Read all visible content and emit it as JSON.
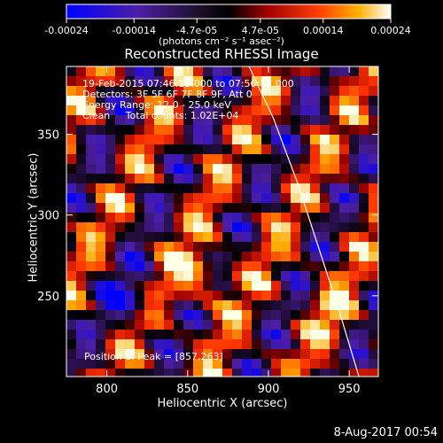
{
  "chart_data": {
    "type": "heatmap",
    "title": "Reconstructed RHESSI Image",
    "colorbar": {
      "units_label": "(photons cm⁻² s⁻¹ asec⁻²)",
      "ticks": [
        "-0.00024",
        "-0.00014",
        "-4.7e-05",
        "4.7e-05",
        "0.00014",
        "0.00024"
      ],
      "min": -0.00024,
      "max": 0.00024
    },
    "xlabel": "Heliocentric X (arcsec)",
    "ylabel": "Heliocentric Y (arcsec)",
    "xlim": [
      775,
      968
    ],
    "ylim": [
      200,
      392
    ],
    "xticks": [
      "800",
      "850",
      "900",
      "950"
    ],
    "yticks": [
      "250",
      "300",
      "350"
    ],
    "annotations": {
      "time": "19-Feb-2015 07:46:12.000 to 07:56:12.000",
      "detectors": "Detectors: 3F 5F 6F 7F 8F 9F, Att 0",
      "energy": "Energy Range: 12.0 - 25.0 keV",
      "method": "Clean     Total counts: 1.02E+04",
      "peak": "Position of Peak = [857,263]"
    },
    "peak": [
      857,
      263
    ],
    "limb_curve": [
      [
        888,
        392
      ],
      [
        903,
        360
      ],
      [
        918,
        320
      ],
      [
        931,
        280
      ],
      [
        944,
        240
      ],
      [
        956,
        200
      ]
    ]
  },
  "footer": {
    "date": "8-Aug-2017 00:54"
  },
  "colors": {
    "background": "#000000",
    "axes": "#ffffff",
    "colormap_stops": [
      "#0000ff",
      "#5a1ea0",
      "#000000",
      "#b40000",
      "#ff3c00",
      "#ffb400",
      "#ffffff"
    ]
  }
}
